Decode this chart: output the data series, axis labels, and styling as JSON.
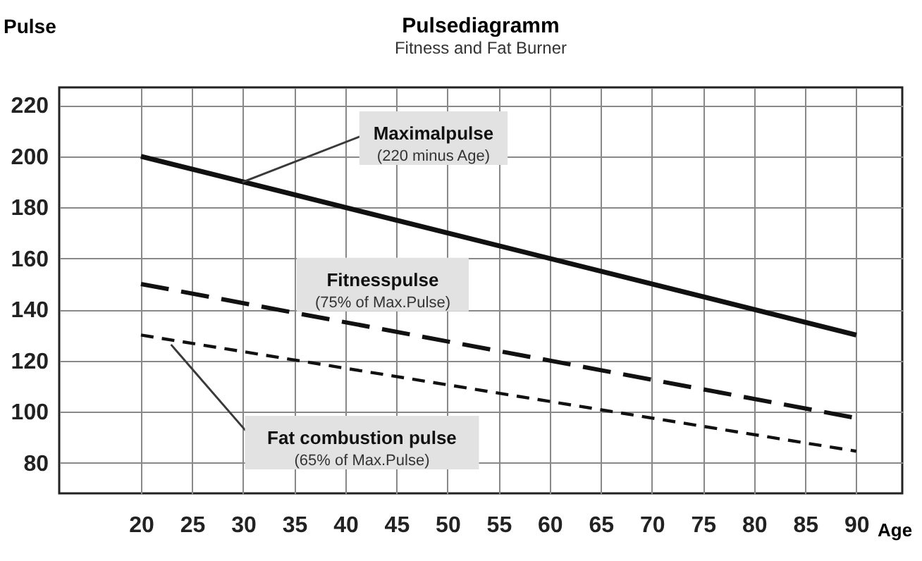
{
  "chart_data": {
    "type": "line",
    "title": "Pulsediagramm",
    "subtitle": "Fitness and Fat Burner",
    "xlabel": "Age",
    "ylabel": "Pulse",
    "x": [
      20,
      90
    ],
    "xlim": [
      12,
      94.5
    ],
    "xticks": [
      20,
      25,
      30,
      35,
      40,
      45,
      50,
      55,
      60,
      65,
      70,
      75,
      80,
      85,
      90
    ],
    "ylim": [
      68,
      227
    ],
    "yticks": [
      80,
      100,
      120,
      140,
      160,
      180,
      200,
      220
    ],
    "grid": true,
    "series": [
      {
        "name": "Maximalpulse",
        "color": "#111111",
        "values": [
          200,
          130
        ],
        "line_style": "solid"
      },
      {
        "name": "Fitnesspulse",
        "color": "#111111",
        "values": [
          150,
          97.5
        ],
        "line_style": "dashed"
      },
      {
        "name": "Fat combustion pulse",
        "color": "#111111",
        "values": [
          130,
          84.5
        ],
        "line_style": "dashed"
      }
    ],
    "annotations": [
      "(220 minus Age)",
      "(75% of Max.Pulse)",
      "(65% of Max.Pulse)"
    ]
  }
}
